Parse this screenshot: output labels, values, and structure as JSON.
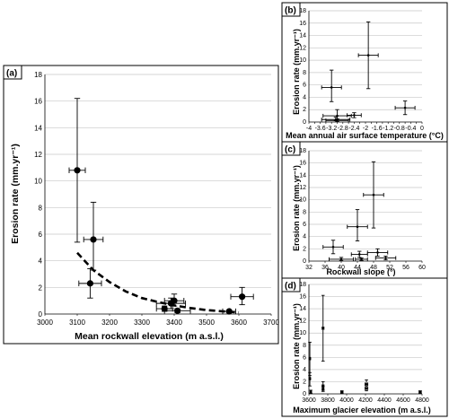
{
  "chart_data": [
    {
      "panel": "(a)",
      "type": "scatter",
      "xlabel": "Mean rockwall elevation (m a.s.l.)",
      "ylabel": "Erosion rate (mm.yr⁻¹)",
      "xlim": [
        3000,
        3700
      ],
      "ylim": [
        0,
        18
      ],
      "xticks": [
        "3000",
        "3100",
        "3200",
        "3300",
        "3400",
        "3500",
        "3600",
        "3700"
      ],
      "yticks": [
        "0",
        "2",
        "4",
        "6",
        "8",
        "10",
        "12",
        "14",
        "16",
        "18"
      ],
      "grid": "horizontal",
      "points": [
        {
          "x": 3100,
          "y": 10.8,
          "xerr": 25,
          "ylo": 5.4,
          "yhi": 16.2
        },
        {
          "x": 3150,
          "y": 5.6,
          "xerr": 30,
          "ylo": 3.3,
          "yhi": 8.4
        },
        {
          "x": 3140,
          "y": 2.3,
          "xerr": 35,
          "ylo": 1.2,
          "yhi": 3.4
        },
        {
          "x": 3400,
          "y": 1.0,
          "xerr": 30,
          "ylo": 0.6,
          "yhi": 1.5
        },
        {
          "x": 3390,
          "y": 0.8,
          "xerr": 45,
          "ylo": 0.4,
          "yhi": 1.2
        },
        {
          "x": 3370,
          "y": 0.4,
          "xerr": 25,
          "ylo": 0.2,
          "yhi": 0.6
        },
        {
          "x": 3410,
          "y": 0.25,
          "xerr": 40,
          "ylo": 0.1,
          "yhi": 0.4
        },
        {
          "x": 3570,
          "y": 0.2,
          "xerr": 20,
          "ylo": 0.1,
          "yhi": 0.3
        },
        {
          "x": 3610,
          "y": 1.3,
          "xerr": 35,
          "ylo": 0.7,
          "yhi": 2.0
        }
      ],
      "trend": [
        [
          3100,
          4.6
        ],
        [
          3150,
          3.3
        ],
        [
          3200,
          2.4
        ],
        [
          3250,
          1.7
        ],
        [
          3300,
          1.2
        ],
        [
          3350,
          0.9
        ],
        [
          3400,
          0.65
        ],
        [
          3450,
          0.45
        ],
        [
          3500,
          0.3
        ],
        [
          3550,
          0.2
        ],
        [
          3600,
          0.12
        ]
      ]
    },
    {
      "panel": "(b)",
      "type": "scatter",
      "xlabel": "Mean annual air surface temperature (°C)",
      "ylabel": "Erosion rate (mm.yr⁻¹)",
      "xlim": [
        -4,
        0
      ],
      "ylim": [
        0,
        18
      ],
      "xticks": [
        "-4",
        "-3.8",
        "-3.6",
        "-3.4",
        "-3.2",
        "-3",
        "-2.8",
        "-2.6",
        "-2.4",
        "-2.2",
        "-2",
        "-1.8",
        "-1.6",
        "-1.4",
        "-1.2",
        "-1",
        "-0.8",
        "-0.6",
        "-0.4",
        "-0.2",
        "0"
      ],
      "yticks": [
        "0",
        "2",
        "4",
        "6",
        "8",
        "10",
        "12",
        "14",
        "16",
        "18"
      ],
      "grid": "horizontal",
      "points": [
        {
          "x": -3.2,
          "y": 5.6,
          "xerr": 0.35,
          "ylo": 3.3,
          "yhi": 8.4
        },
        {
          "x": -1.9,
          "y": 10.8,
          "xerr": 0.35,
          "ylo": 5.4,
          "yhi": 16.2
        },
        {
          "x": -3.0,
          "y": 1.0,
          "xerr": 0.5,
          "ylo": 0.5,
          "yhi": 2.0
        },
        {
          "x": -3.05,
          "y": 0.4,
          "xerr": 0.5,
          "ylo": 0.2,
          "yhi": 0.8
        },
        {
          "x": -3.0,
          "y": 0.25,
          "xerr": 0.4,
          "ylo": 0.1,
          "yhi": 0.5
        },
        {
          "x": -2.4,
          "y": 1.1,
          "xerr": 0.25,
          "ylo": 0.7,
          "yhi": 1.5
        },
        {
          "x": -0.6,
          "y": 2.3,
          "xerr": 0.35,
          "ylo": 1.2,
          "yhi": 3.4
        }
      ]
    },
    {
      "panel": "(c)",
      "type": "scatter",
      "xlabel": "Rockwall slope (°)",
      "ylabel": "Erosion rate (mm.yr⁻¹)",
      "xlim": [
        32,
        60
      ],
      "ylim": [
        0,
        18
      ],
      "xticks": [
        "32",
        "36",
        "40",
        "44",
        "48",
        "52",
        "56",
        "60"
      ],
      "yticks": [
        "0",
        "2",
        "4",
        "6",
        "8",
        "10",
        "12",
        "14",
        "16",
        "18"
      ],
      "grid": "horizontal",
      "points": [
        {
          "x": 48.0,
          "y": 10.8,
          "xerr": 2.5,
          "ylo": 5.4,
          "yhi": 16.2
        },
        {
          "x": 44.0,
          "y": 5.6,
          "xerr": 2.5,
          "ylo": 3.3,
          "yhi": 8.4
        },
        {
          "x": 38.0,
          "y": 2.3,
          "xerr": 2.5,
          "ylo": 1.2,
          "yhi": 3.4
        },
        {
          "x": 44.5,
          "y": 1.1,
          "xerr": 2.0,
          "ylo": 0.6,
          "yhi": 1.6
        },
        {
          "x": 49.0,
          "y": 1.4,
          "xerr": 2.5,
          "ylo": 0.8,
          "yhi": 2.0
        },
        {
          "x": 40.0,
          "y": 0.3,
          "xerr": 3.0,
          "ylo": 0.1,
          "yhi": 0.6
        },
        {
          "x": 51.0,
          "y": 0.5,
          "xerr": 2.5,
          "ylo": 0.2,
          "yhi": 0.8
        },
        {
          "x": 45.0,
          "y": 0.3,
          "xerr": 1.5,
          "ylo": 0.1,
          "yhi": 0.5
        }
      ]
    },
    {
      "panel": "(d)",
      "type": "scatter",
      "xlabel": "Maximum glacier elevation (m a.s.l.)",
      "ylabel": "Erosion rate (mm.yr⁻¹)",
      "xlim": [
        3600,
        4800
      ],
      "ylim": [
        0,
        18
      ],
      "xticks": [
        "3600",
        "3800",
        "4000",
        "4200",
        "4400",
        "4600",
        "4800"
      ],
      "yticks": [
        "0",
        "2",
        "4",
        "6",
        "8",
        "10",
        "12",
        "14",
        "16",
        "18"
      ],
      "grid": "horizontal",
      "points": [
        {
          "x": 3610,
          "y": 5.8,
          "xerr": 8,
          "ylo": 3.0,
          "yhi": 8.5
        },
        {
          "x": 3610,
          "y": 2.5,
          "xerr": 8,
          "ylo": 1.3,
          "yhi": 3.5
        },
        {
          "x": 3620,
          "y": 0.3,
          "xerr": 8,
          "ylo": 0.1,
          "yhi": 0.6
        },
        {
          "x": 3750,
          "y": 10.8,
          "xerr": 10,
          "ylo": 5.4,
          "yhi": 16.2
        },
        {
          "x": 3750,
          "y": 1.3,
          "xerr": 10,
          "ylo": 0.6,
          "yhi": 2.0
        },
        {
          "x": 3750,
          "y": 0.8,
          "xerr": 10,
          "ylo": 0.4,
          "yhi": 1.3
        },
        {
          "x": 3950,
          "y": 0.3,
          "xerr": 12,
          "ylo": 0.1,
          "yhi": 0.5
        },
        {
          "x": 4210,
          "y": 1.6,
          "xerr": 15,
          "ylo": 0.9,
          "yhi": 2.3
        },
        {
          "x": 4210,
          "y": 0.9,
          "xerr": 15,
          "ylo": 0.5,
          "yhi": 1.3
        },
        {
          "x": 4780,
          "y": 0.3,
          "xerr": 12,
          "ylo": 0.1,
          "yhi": 0.5
        }
      ]
    }
  ]
}
